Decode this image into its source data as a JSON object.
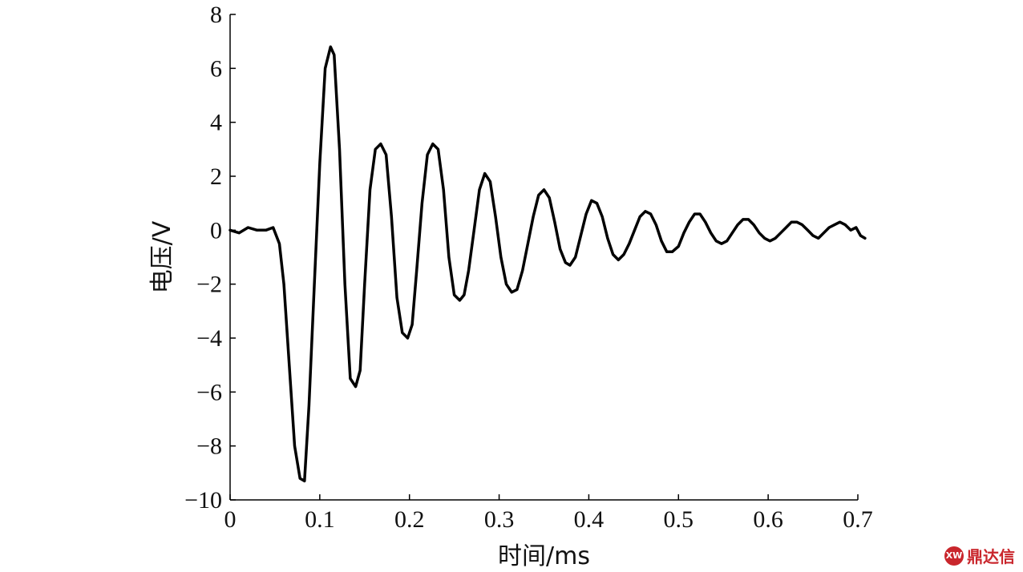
{
  "chart_data": {
    "type": "line",
    "title": "",
    "xlabel": "时间/ms",
    "ylabel": "电压/V",
    "xlim": [
      0,
      0.7
    ],
    "ylim": [
      -10,
      8
    ],
    "xticks": [
      0,
      0.1,
      0.2,
      0.3,
      0.4,
      0.5,
      0.6,
      0.7
    ],
    "yticks": [
      -10,
      -8,
      -6,
      -4,
      -2,
      0,
      2,
      4,
      6,
      8
    ],
    "xtick_labels": [
      "0",
      "0.1",
      "0.2",
      "0.3",
      "0.4",
      "0.5",
      "0.6",
      "0.7"
    ],
    "ytick_labels": [
      "−10",
      "−8",
      "−6",
      "−4",
      "−2",
      "0",
      "2",
      "4",
      "6",
      "8"
    ],
    "grid": false,
    "series": [
      {
        "color": "#000000",
        "x": [
          0,
          0.01,
          0.02,
          0.03,
          0.04,
          0.048,
          0.055,
          0.06,
          0.066,
          0.072,
          0.078,
          0.083,
          0.088,
          0.094,
          0.1,
          0.106,
          0.112,
          0.116,
          0.122,
          0.128,
          0.134,
          0.14,
          0.145,
          0.15,
          0.156,
          0.162,
          0.168,
          0.174,
          0.18,
          0.186,
          0.192,
          0.198,
          0.203,
          0.208,
          0.214,
          0.22,
          0.226,
          0.232,
          0.238,
          0.244,
          0.25,
          0.256,
          0.261,
          0.266,
          0.272,
          0.278,
          0.284,
          0.29,
          0.296,
          0.302,
          0.308,
          0.314,
          0.32,
          0.326,
          0.332,
          0.338,
          0.344,
          0.35,
          0.356,
          0.362,
          0.368,
          0.374,
          0.379,
          0.385,
          0.391,
          0.397,
          0.403,
          0.409,
          0.415,
          0.421,
          0.427,
          0.433,
          0.439,
          0.445,
          0.451,
          0.457,
          0.463,
          0.469,
          0.475,
          0.481,
          0.487,
          0.493,
          0.5,
          0.506,
          0.512,
          0.518,
          0.524,
          0.53,
          0.536,
          0.542,
          0.548,
          0.554,
          0.56,
          0.566,
          0.572,
          0.578,
          0.584,
          0.59,
          0.596,
          0.602,
          0.608,
          0.614,
          0.62,
          0.626,
          0.632,
          0.638,
          0.644,
          0.65,
          0.656,
          0.662,
          0.668,
          0.674,
          0.68,
          0.686,
          0.692,
          0.698,
          0.703,
          0.708
        ],
        "y": [
          0,
          -0.1,
          0.1,
          0,
          0,
          0.1,
          -0.5,
          -2,
          -5,
          -8,
          -9.2,
          -9.3,
          -6.5,
          -2,
          2.5,
          6,
          6.8,
          6.5,
          3,
          -2,
          -5.5,
          -5.8,
          -5.2,
          -2,
          1.5,
          3,
          3.2,
          2.8,
          0.5,
          -2.5,
          -3.8,
          -4,
          -3.5,
          -1.5,
          1,
          2.8,
          3.2,
          3,
          1.5,
          -1,
          -2.4,
          -2.6,
          -2.4,
          -1.5,
          0,
          1.5,
          2.1,
          1.8,
          0.5,
          -1,
          -2,
          -2.3,
          -2.2,
          -1.5,
          -0.5,
          0.5,
          1.3,
          1.5,
          1.2,
          0.3,
          -0.7,
          -1.2,
          -1.3,
          -1,
          -0.2,
          0.6,
          1.1,
          1,
          0.5,
          -0.3,
          -0.9,
          -1.1,
          -0.9,
          -0.5,
          0,
          0.5,
          0.7,
          0.6,
          0.2,
          -0.4,
          -0.8,
          -0.8,
          -0.6,
          -0.1,
          0.3,
          0.6,
          0.6,
          0.3,
          -0.1,
          -0.4,
          -0.5,
          -0.4,
          -0.1,
          0.2,
          0.4,
          0.4,
          0.2,
          -0.1,
          -0.3,
          -0.4,
          -0.3,
          -0.1,
          0.1,
          0.3,
          0.3,
          0.2,
          0,
          -0.2,
          -0.3,
          -0.1,
          0.1,
          0.2,
          0.3,
          0.2,
          0,
          0.1,
          -0.2,
          -0.3
        ]
      }
    ]
  },
  "watermark": {
    "logo_text": "XW",
    "text": "鼎达信",
    "color": "#c9262c"
  }
}
